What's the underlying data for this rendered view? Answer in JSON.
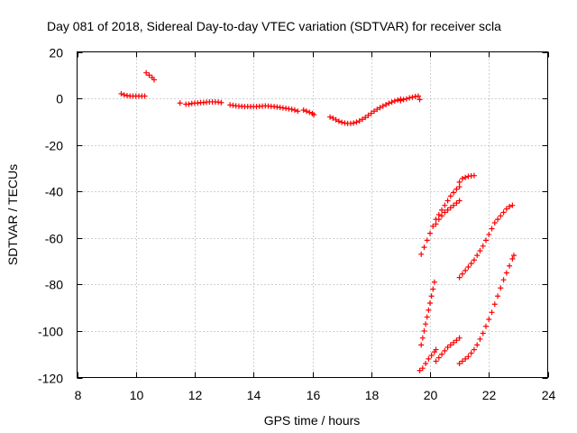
{
  "chart_data": {
    "type": "scatter",
    "title": "Day 081 of 2018, Sidereal Day-to-day VTEC variation (SDTVAR) for receiver scla",
    "xlabel": "GPS time / hours",
    "ylabel": "SDTVAR / TECUs",
    "xlim": [
      8,
      24
    ],
    "ylim": [
      -120,
      20
    ],
    "xticks": [
      8,
      10,
      12,
      14,
      16,
      18,
      20,
      22,
      24
    ],
    "yticks": [
      -120,
      -100,
      -80,
      -60,
      -40,
      -20,
      0,
      20
    ],
    "grid": true,
    "marker": "+",
    "color": "#ff0000",
    "series": [
      {
        "points": [
          [
            9.5,
            2
          ],
          [
            9.6,
            1.5
          ],
          [
            9.7,
            1.2
          ],
          [
            9.8,
            1
          ],
          [
            9.9,
            1
          ],
          [
            10.0,
            1
          ],
          [
            10.1,
            1
          ],
          [
            10.2,
            1
          ],
          [
            10.3,
            1
          ]
        ]
      },
      {
        "points": [
          [
            10.35,
            11
          ],
          [
            10.45,
            10
          ],
          [
            10.55,
            9
          ],
          [
            10.62,
            8
          ]
        ]
      },
      {
        "points": [
          [
            11.5,
            -2
          ]
        ]
      },
      {
        "points": [
          [
            11.7,
            -2.5
          ],
          [
            11.8,
            -2.5
          ],
          [
            11.9,
            -2.2
          ],
          [
            12.0,
            -2
          ],
          [
            12.1,
            -2
          ],
          [
            12.2,
            -1.8
          ],
          [
            12.3,
            -1.8
          ],
          [
            12.4,
            -1.6
          ],
          [
            12.5,
            -1.5
          ],
          [
            12.6,
            -1.5
          ],
          [
            12.7,
            -1.5
          ],
          [
            12.8,
            -1.6
          ],
          [
            12.9,
            -1.8
          ]
        ]
      },
      {
        "points": [
          [
            13.2,
            -2.8
          ],
          [
            13.3,
            -3
          ],
          [
            13.4,
            -3.2
          ],
          [
            13.5,
            -3.3
          ],
          [
            13.6,
            -3.4
          ],
          [
            13.7,
            -3.5
          ],
          [
            13.8,
            -3.5
          ],
          [
            13.9,
            -3.5
          ],
          [
            14.0,
            -3.5
          ],
          [
            14.1,
            -3.5
          ],
          [
            14.2,
            -3.4
          ],
          [
            14.3,
            -3.3
          ],
          [
            14.4,
            -3.2
          ],
          [
            14.5,
            -3.3
          ],
          [
            14.6,
            -3.4
          ],
          [
            14.7,
            -3.5
          ],
          [
            14.8,
            -3.7
          ],
          [
            14.9,
            -3.9
          ],
          [
            15.0,
            -4.1
          ],
          [
            15.1,
            -4.3
          ],
          [
            15.2,
            -4.5
          ],
          [
            15.3,
            -4.7
          ],
          [
            15.4,
            -5
          ],
          [
            15.5,
            -5.5
          ]
        ]
      },
      {
        "points": [
          [
            15.7,
            -5
          ],
          [
            15.8,
            -5.5
          ],
          [
            15.9,
            -6
          ],
          [
            16.0,
            -6.5
          ],
          [
            16.05,
            -7
          ]
        ]
      },
      {
        "points": [
          [
            16.6,
            -8
          ],
          [
            16.7,
            -8.5
          ],
          [
            16.8,
            -9.2
          ],
          [
            16.9,
            -9.8
          ],
          [
            17.0,
            -10.3
          ],
          [
            17.1,
            -10.6
          ],
          [
            17.2,
            -10.8
          ],
          [
            17.3,
            -10.8
          ],
          [
            17.4,
            -10.6
          ],
          [
            17.5,
            -10.2
          ],
          [
            17.6,
            -9.7
          ],
          [
            17.7,
            -9
          ],
          [
            17.8,
            -8.2
          ],
          [
            17.9,
            -7.3
          ],
          [
            18.0,
            -6.4
          ],
          [
            18.1,
            -5.5
          ],
          [
            18.2,
            -4.7
          ],
          [
            18.3,
            -4
          ],
          [
            18.4,
            -3.3
          ],
          [
            18.5,
            -2.7
          ],
          [
            18.6,
            -2.1
          ],
          [
            18.7,
            -1.6
          ],
          [
            18.8,
            -1.1
          ],
          [
            18.9,
            -0.7
          ],
          [
            19.0,
            -0.3
          ]
        ]
      },
      {
        "points": [
          [
            19.0,
            -1
          ],
          [
            19.1,
            -0.5
          ],
          [
            19.2,
            -0.2
          ],
          [
            19.3,
            0.2
          ],
          [
            19.4,
            0.5
          ],
          [
            19.5,
            0.8
          ],
          [
            19.6,
            1
          ],
          [
            19.65,
            -0.5
          ]
        ]
      },
      {
        "points": [
          [
            19.7,
            -67
          ],
          [
            19.8,
            -64
          ],
          [
            19.9,
            -61
          ],
          [
            20.0,
            -58
          ],
          [
            20.1,
            -55
          ],
          [
            20.2,
            -52
          ],
          [
            20.3,
            -50
          ],
          [
            20.4,
            -48
          ],
          [
            20.5,
            -46
          ],
          [
            20.6,
            -44
          ],
          [
            20.7,
            -42
          ],
          [
            20.8,
            -40.5
          ],
          [
            20.9,
            -39
          ],
          [
            21.0,
            -38
          ]
        ]
      },
      {
        "points": [
          [
            20.2,
            -54
          ],
          [
            20.3,
            -52
          ],
          [
            20.4,
            -50.5
          ],
          [
            20.5,
            -49
          ],
          [
            20.6,
            -48
          ],
          [
            20.7,
            -47
          ],
          [
            20.8,
            -46
          ],
          [
            20.9,
            -45
          ],
          [
            21.0,
            -44
          ]
        ]
      },
      {
        "points": [
          [
            21.0,
            -36
          ],
          [
            21.1,
            -34.5
          ],
          [
            21.2,
            -34
          ],
          [
            21.3,
            -33.5
          ],
          [
            21.4,
            -33.3
          ],
          [
            21.5,
            -33.2
          ]
        ]
      },
      {
        "points": [
          [
            21.0,
            -77
          ],
          [
            21.1,
            -75.5
          ],
          [
            21.2,
            -74
          ],
          [
            21.3,
            -72.5
          ],
          [
            21.4,
            -71
          ],
          [
            21.5,
            -69.5
          ],
          [
            21.6,
            -67.5
          ],
          [
            21.7,
            -65.5
          ],
          [
            21.8,
            -63.5
          ],
          [
            21.9,
            -61
          ],
          [
            22.0,
            -58.5
          ],
          [
            22.1,
            -56
          ],
          [
            22.2,
            -53.5
          ],
          [
            22.3,
            -52
          ],
          [
            22.4,
            -50.5
          ],
          [
            22.5,
            -49
          ],
          [
            22.6,
            -47.5
          ],
          [
            22.7,
            -46.5
          ],
          [
            22.8,
            -46
          ]
        ]
      },
      {
        "points": [
          [
            19.7,
            -106
          ],
          [
            19.75,
            -103
          ],
          [
            19.8,
            -100
          ],
          [
            19.85,
            -97
          ],
          [
            19.9,
            -94
          ],
          [
            19.95,
            -91
          ],
          [
            20.0,
            -88
          ],
          [
            20.05,
            -85
          ],
          [
            20.1,
            -82
          ],
          [
            20.15,
            -79
          ]
        ]
      },
      {
        "points": [
          [
            19.65,
            -117
          ],
          [
            19.75,
            -116
          ],
          [
            19.85,
            -114
          ],
          [
            19.95,
            -112
          ],
          [
            20.05,
            -110.5
          ],
          [
            20.15,
            -109
          ],
          [
            20.2,
            -108
          ]
        ]
      },
      {
        "points": [
          [
            20.2,
            -113
          ],
          [
            20.3,
            -111.5
          ],
          [
            20.4,
            -110
          ],
          [
            20.5,
            -108.5
          ],
          [
            20.6,
            -107
          ],
          [
            20.7,
            -106
          ],
          [
            20.8,
            -105
          ],
          [
            20.9,
            -104
          ],
          [
            21.0,
            -103
          ]
        ]
      },
      {
        "points": [
          [
            21.0,
            -114
          ],
          [
            21.1,
            -113
          ],
          [
            21.2,
            -112
          ],
          [
            21.3,
            -111
          ],
          [
            21.4,
            -109.5
          ],
          [
            21.5,
            -108
          ],
          [
            21.6,
            -106
          ],
          [
            21.7,
            -103.5
          ],
          [
            21.8,
            -101
          ],
          [
            21.9,
            -98
          ],
          [
            22.0,
            -95
          ],
          [
            22.1,
            -92
          ],
          [
            22.2,
            -88.5
          ],
          [
            22.3,
            -85
          ],
          [
            22.4,
            -81.5
          ],
          [
            22.5,
            -78
          ],
          [
            22.6,
            -75
          ],
          [
            22.7,
            -72
          ],
          [
            22.8,
            -69
          ],
          [
            22.85,
            -67.5
          ]
        ]
      }
    ]
  }
}
